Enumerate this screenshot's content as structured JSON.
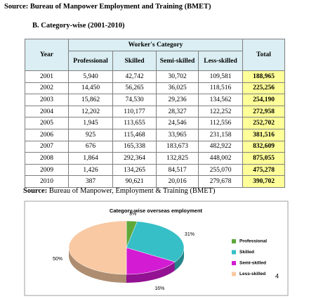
{
  "source_top": "Source: Bureau of Manpower Employment and Training (BMET)",
  "section_title": "B.  Category-wise (2001-2010)",
  "table": {
    "year_header": "Year",
    "group_header": "Worker's Category",
    "total_header": "Total",
    "category_headers": [
      "Professional",
      "Skilled",
      "Semi-skilled",
      "Less-skilled"
    ],
    "rows": [
      [
        "2001",
        "5,940",
        "42,742",
        "30,702",
        "109,581",
        "188,965"
      ],
      [
        "2002",
        "14,450",
        "56,265",
        "36,025",
        "118,516",
        "225,256"
      ],
      [
        "2003",
        "15,862",
        "74,530",
        "29,236",
        "134,562",
        "254,190"
      ],
      [
        "2004",
        "12,202",
        "110,177",
        "28,327",
        "122,252",
        "272,958"
      ],
      [
        "2005",
        "1,945",
        "113,655",
        "24,546",
        "112,556",
        "252,702"
      ],
      [
        "2006",
        "925",
        "115,468",
        "33,965",
        "231,158",
        "381,516"
      ],
      [
        "2007",
        "676",
        "165,338",
        "183,673",
        "482,922",
        "832,609"
      ],
      [
        "2008",
        "1,864",
        "292,364",
        "132,825",
        "448,002",
        "875,055"
      ],
      [
        "2009",
        "1,426",
        "134,265",
        "84,517",
        "255,070",
        "475,278"
      ],
      [
        "2010",
        "387",
        "90,621",
        "20,016",
        "279,678",
        "390,702"
      ]
    ]
  },
  "source_bottom_label": "Source:",
  "source_bottom": "Bureau of Manpower, Employment & Training (BMET)",
  "chart_data": {
    "type": "pie",
    "title": "Category-wise overseas employment",
    "categories": [
      "Professional",
      "Skilled",
      "Semi-skilled",
      "Less-skilled"
    ],
    "values": [
      3,
      31,
      16,
      50
    ],
    "value_labels": [
      "3%",
      "31%",
      "16%",
      "50%"
    ],
    "colors": [
      "#5fa83a",
      "#36bfc6",
      "#d21bd2",
      "#f8c9a2"
    ],
    "legend": "right"
  },
  "page_number": "4"
}
